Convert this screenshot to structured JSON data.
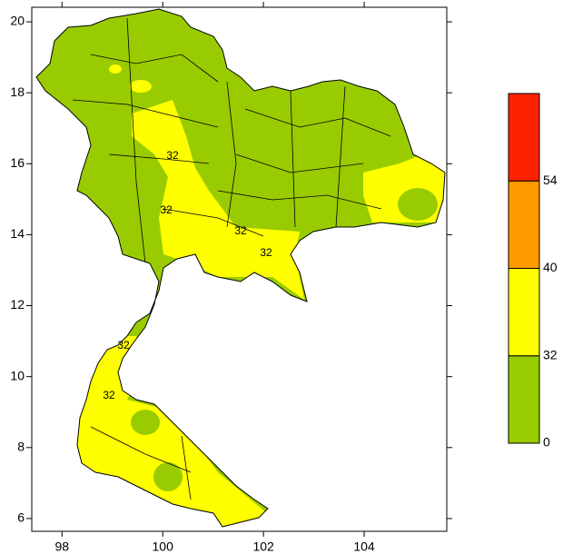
{
  "map": {
    "xlim": [
      97.4,
      105.64
    ],
    "ylim": [
      5.64,
      20.41
    ],
    "xticks": [
      98,
      100,
      102,
      104
    ],
    "yticks": [
      6,
      8,
      10,
      12,
      14,
      16,
      18,
      20
    ],
    "colorbar": {
      "levels": [
        0,
        32,
        40,
        54
      ],
      "colors": [
        "#99cc00",
        "#ffff00",
        "#ff9900",
        "#ff2200"
      ]
    },
    "contour_labels": [
      "32",
      "32",
      "32",
      "32",
      "32",
      "32"
    ]
  }
}
